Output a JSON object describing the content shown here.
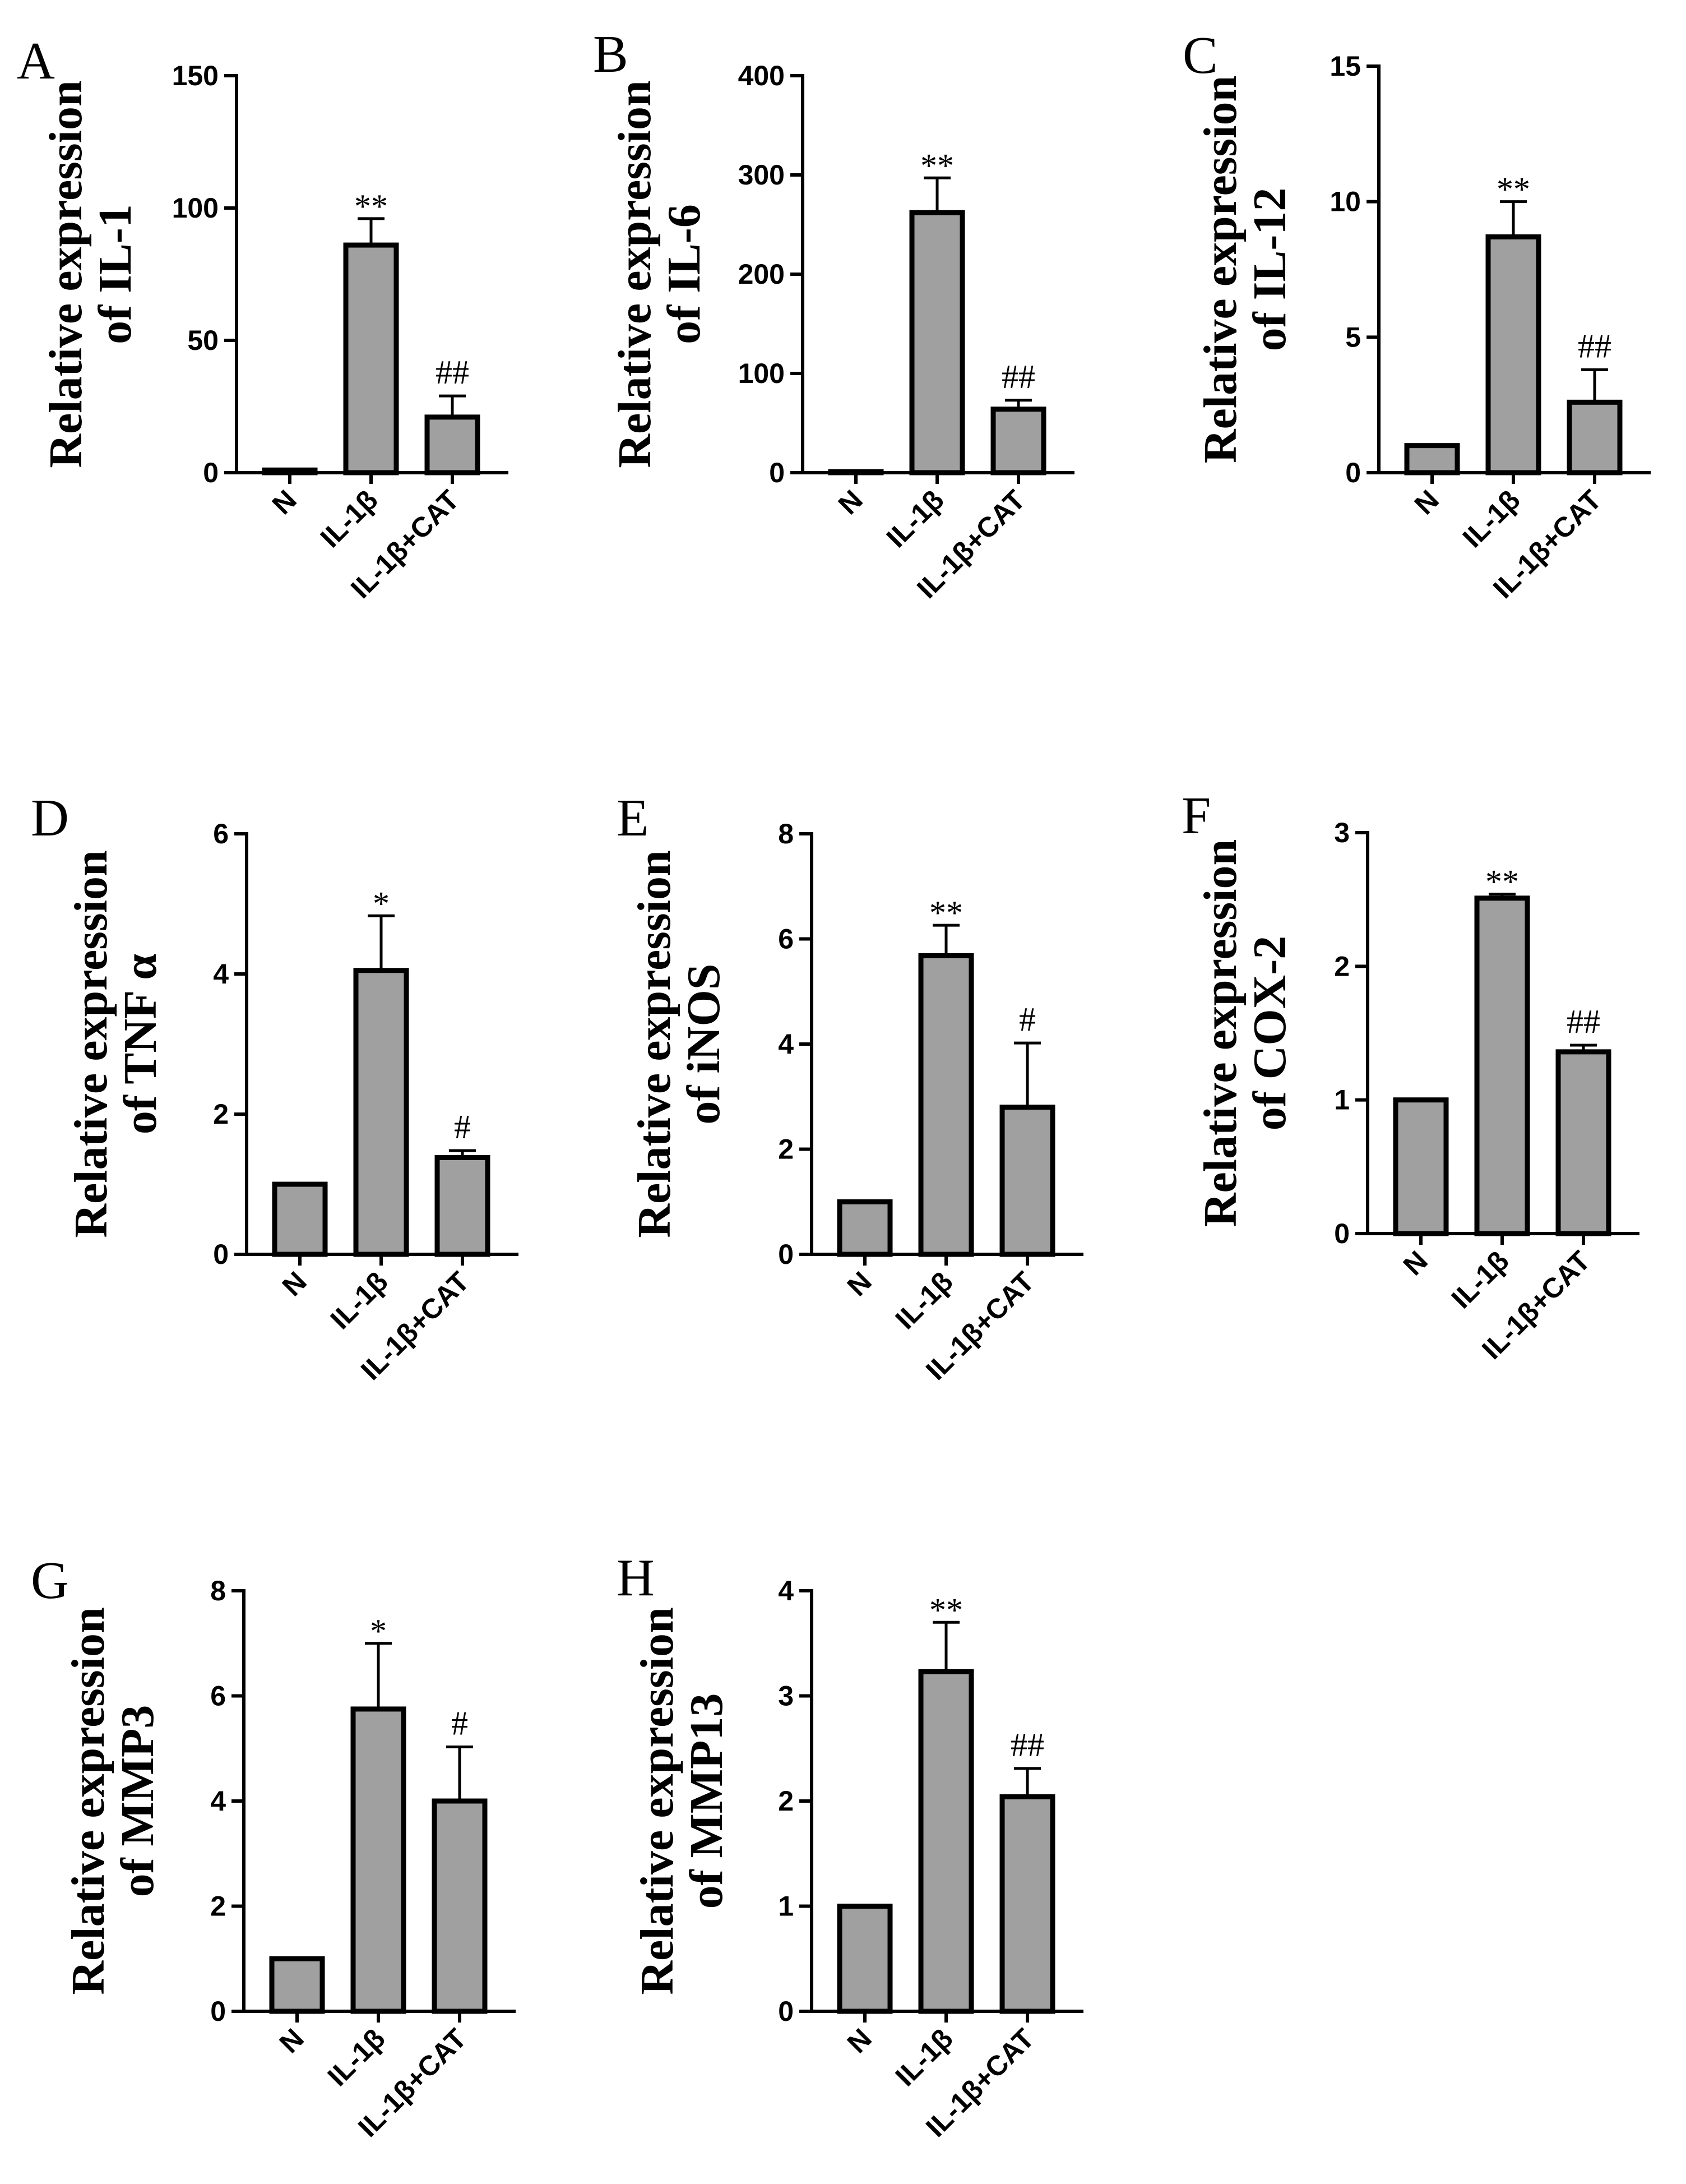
{
  "chart_data": [
    {
      "letter": "A",
      "type": "bar",
      "ylabel_line1": "Relative expression",
      "ylabel_line2": "of IL-1",
      "categories": [
        "N",
        "IL-1β",
        "IL-1β+CAT"
      ],
      "values": [
        1,
        86,
        21
      ],
      "errors": [
        0,
        10,
        8
      ],
      "annotations": [
        "",
        "**",
        "##"
      ],
      "ylim": [
        0,
        150
      ],
      "yticks": [
        0,
        50,
        100,
        150
      ]
    },
    {
      "letter": "B",
      "type": "bar",
      "ylabel_line1": "Relative expression",
      "ylabel_line2": "of IL-6",
      "categories": [
        "N",
        "IL-1β",
        "IL-1β+CAT"
      ],
      "values": [
        1,
        262,
        64
      ],
      "errors": [
        0,
        35,
        9
      ],
      "annotations": [
        "",
        "**",
        "##"
      ],
      "ylim": [
        0,
        400
      ],
      "yticks": [
        0,
        100,
        200,
        300,
        400
      ]
    },
    {
      "letter": "C",
      "type": "bar",
      "ylabel_line1": "Relative expression",
      "ylabel_line2": "of IL-12",
      "categories": [
        "N",
        "IL-1β",
        "IL-1β+CAT"
      ],
      "values": [
        1,
        8.7,
        2.6
      ],
      "errors": [
        0,
        1.3,
        1.2
      ],
      "annotations": [
        "",
        "**",
        "##"
      ],
      "ylim": [
        0,
        15
      ],
      "yticks": [
        0,
        5,
        10,
        15
      ]
    },
    {
      "letter": "D",
      "type": "bar",
      "ylabel_line1": "Relative expression",
      "ylabel_line2": "of TNF α",
      "categories": [
        "N",
        "IL-1β",
        "IL-1β+CAT"
      ],
      "values": [
        1,
        4.05,
        1.38
      ],
      "errors": [
        0,
        0.78,
        0.1
      ],
      "annotations": [
        "",
        "*",
        "#"
      ],
      "ylim": [
        0,
        6
      ],
      "yticks": [
        0,
        2,
        4,
        6
      ]
    },
    {
      "letter": "E",
      "type": "bar",
      "ylabel_line1": "Relative expression",
      "ylabel_line2": "of iNOS",
      "categories": [
        "N",
        "IL-1β",
        "IL-1β+CAT"
      ],
      "values": [
        1,
        5.68,
        2.8
      ],
      "errors": [
        0,
        0.58,
        1.22
      ],
      "annotations": [
        "",
        "**",
        "#"
      ],
      "ylim": [
        0,
        8
      ],
      "yticks": [
        0,
        2,
        4,
        6,
        8
      ]
    },
    {
      "letter": "F",
      "type": "bar",
      "ylabel_line1": "Relative expression",
      "ylabel_line2": "of COX-2",
      "categories": [
        "N",
        "IL-1β",
        "IL-1β+CAT"
      ],
      "values": [
        1,
        2.51,
        1.36
      ],
      "errors": [
        0,
        0.03,
        0.05
      ],
      "annotations": [
        "",
        "**",
        "##"
      ],
      "ylim": [
        0,
        3
      ],
      "yticks": [
        0,
        1,
        2,
        3
      ]
    },
    {
      "letter": "G",
      "type": "bar",
      "ylabel_line1": "Relative expression",
      "ylabel_line2": "of MMP3",
      "categories": [
        "N",
        "IL-1β",
        "IL-1β+CAT"
      ],
      "values": [
        1,
        5.75,
        4.0
      ],
      "errors": [
        0,
        1.25,
        1.03
      ],
      "annotations": [
        "",
        "*",
        "#"
      ],
      "ylim": [
        0,
        8
      ],
      "yticks": [
        0,
        2,
        4,
        6,
        8
      ]
    },
    {
      "letter": "H",
      "type": "bar",
      "ylabel_line1": "Relative expression",
      "ylabel_line2": "of MMP13",
      "categories": [
        "N",
        "IL-1β",
        "IL-1β+CAT"
      ],
      "values": [
        1,
        3.23,
        2.04
      ],
      "errors": [
        0,
        0.47,
        0.27
      ],
      "annotations": [
        "",
        "**",
        "##"
      ],
      "ylim": [
        0,
        4
      ],
      "yticks": [
        0,
        1,
        2,
        3,
        4
      ]
    }
  ],
  "colors": {
    "bar_fill": "#a0a0a0",
    "stroke": "#000000",
    "background": "#ffffff"
  }
}
